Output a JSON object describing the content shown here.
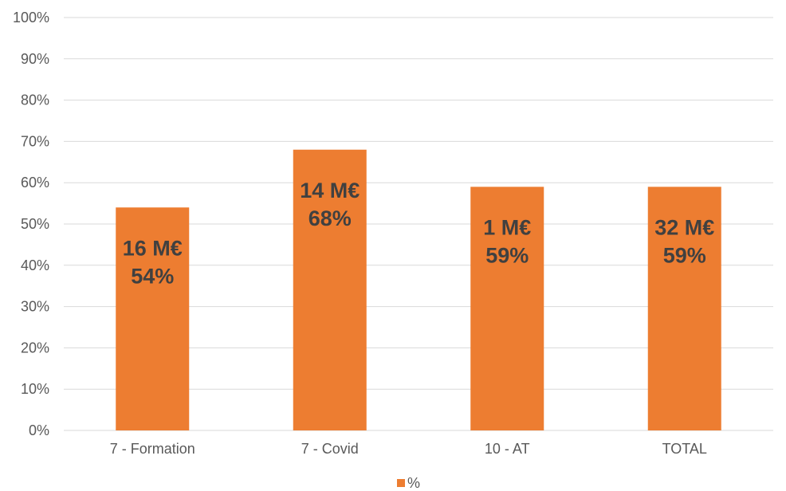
{
  "chart_data": {
    "type": "bar",
    "categories": [
      "7 - Formation",
      "7 - Covid",
      "10 - AT",
      "TOTAL"
    ],
    "series": [
      {
        "name": "%",
        "values": [
          54,
          68,
          59,
          59
        ]
      }
    ],
    "data_labels": [
      {
        "amount": "16 M€",
        "percent": "54%"
      },
      {
        "amount": "14 M€",
        "percent": "68%"
      },
      {
        "amount": "1 M€",
        "percent": "59%"
      },
      {
        "amount": "32 M€",
        "percent": "59%"
      }
    ],
    "y_ticks": [
      "0%",
      "10%",
      "20%",
      "30%",
      "40%",
      "50%",
      "60%",
      "70%",
      "80%",
      "90%",
      "100%"
    ],
    "ylim": [
      0,
      100
    ],
    "grid": true,
    "legend_position": "bottom",
    "bar_color": "#ed7d31"
  }
}
